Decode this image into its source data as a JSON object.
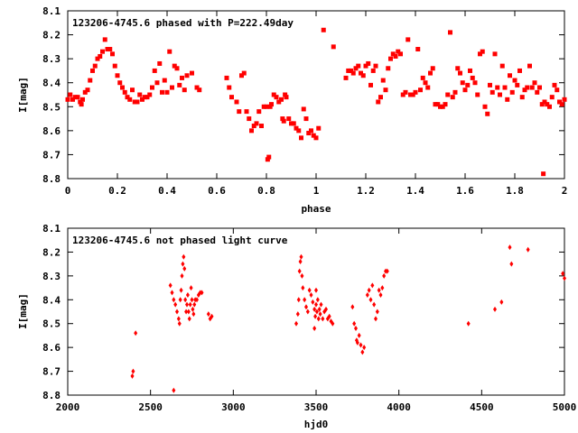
{
  "chart_data": [
    {
      "type": "scatter",
      "title": "123206-4745.6 phased with P=222.49day",
      "xlabel": "phase",
      "ylabel": "I[mag]",
      "xlim": [
        0,
        2
      ],
      "ylim": [
        8.1,
        8.8
      ],
      "y_inverted": true,
      "xticks": [
        "0",
        "0.2",
        "0.4",
        "0.6",
        "0.8",
        "1",
        "1.2",
        "1.4",
        "1.6",
        "1.8",
        "2"
      ],
      "yticks": [
        "8.1",
        "8.2",
        "8.3",
        "8.4",
        "8.5",
        "8.6",
        "8.7",
        "8.8"
      ],
      "marker_color": "#ff0000",
      "grid": false,
      "points": [
        [
          0.0,
          8.47
        ],
        [
          0.01,
          8.45
        ],
        [
          0.02,
          8.47
        ],
        [
          0.03,
          8.46
        ],
        [
          0.04,
          8.46
        ],
        [
          0.05,
          8.48
        ],
        [
          0.055,
          8.49
        ],
        [
          0.06,
          8.47
        ],
        [
          0.07,
          8.44
        ],
        [
          0.08,
          8.43
        ],
        [
          0.09,
          8.39
        ],
        [
          0.1,
          8.35
        ],
        [
          0.11,
          8.33
        ],
        [
          0.12,
          8.3
        ],
        [
          0.13,
          8.29
        ],
        [
          0.14,
          8.27
        ],
        [
          0.15,
          8.22
        ],
        [
          0.16,
          8.26
        ],
        [
          0.17,
          8.26
        ],
        [
          0.18,
          8.28
        ],
        [
          0.19,
          8.33
        ],
        [
          0.2,
          8.37
        ],
        [
          0.21,
          8.4
        ],
        [
          0.22,
          8.42
        ],
        [
          0.23,
          8.44
        ],
        [
          0.24,
          8.46
        ],
        [
          0.25,
          8.47
        ],
        [
          0.26,
          8.43
        ],
        [
          0.27,
          8.48
        ],
        [
          0.28,
          8.48
        ],
        [
          0.29,
          8.45
        ],
        [
          0.3,
          8.47
        ],
        [
          0.31,
          8.46
        ],
        [
          0.32,
          8.46
        ],
        [
          0.33,
          8.45
        ],
        [
          0.34,
          8.42
        ],
        [
          0.35,
          8.35
        ],
        [
          0.36,
          8.4
        ],
        [
          0.37,
          8.32
        ],
        [
          0.38,
          8.44
        ],
        [
          0.39,
          8.39
        ],
        [
          0.4,
          8.44
        ],
        [
          0.41,
          8.27
        ],
        [
          0.42,
          8.42
        ],
        [
          0.43,
          8.33
        ],
        [
          0.44,
          8.34
        ],
        [
          0.45,
          8.41
        ],
        [
          0.46,
          8.38
        ],
        [
          0.47,
          8.43
        ],
        [
          0.48,
          8.37
        ],
        [
          0.5,
          8.36
        ],
        [
          0.52,
          8.42
        ],
        [
          0.53,
          8.43
        ],
        [
          0.64,
          8.38
        ],
        [
          0.65,
          8.42
        ],
        [
          0.66,
          8.46
        ],
        [
          0.68,
          8.48
        ],
        [
          0.69,
          8.52
        ],
        [
          0.7,
          8.37
        ],
        [
          0.71,
          8.36
        ],
        [
          0.72,
          8.52
        ],
        [
          0.73,
          8.55
        ],
        [
          0.74,
          8.6
        ],
        [
          0.75,
          8.58
        ],
        [
          0.76,
          8.57
        ],
        [
          0.77,
          8.52
        ],
        [
          0.78,
          8.58
        ],
        [
          0.79,
          8.5
        ],
        [
          0.8,
          8.5
        ],
        [
          0.805,
          8.72
        ],
        [
          0.81,
          8.71
        ],
        [
          0.815,
          8.5
        ],
        [
          0.82,
          8.49
        ],
        [
          0.83,
          8.45
        ],
        [
          0.84,
          8.46
        ],
        [
          0.85,
          8.48
        ],
        [
          0.86,
          8.47
        ],
        [
          0.865,
          8.55
        ],
        [
          0.87,
          8.56
        ],
        [
          0.875,
          8.45
        ],
        [
          0.88,
          8.46
        ],
        [
          0.89,
          8.55
        ],
        [
          0.9,
          8.57
        ],
        [
          0.91,
          8.57
        ],
        [
          0.92,
          8.59
        ],
        [
          0.93,
          8.6
        ],
        [
          0.94,
          8.63
        ],
        [
          0.95,
          8.51
        ],
        [
          0.96,
          8.55
        ],
        [
          0.97,
          8.61
        ],
        [
          0.98,
          8.6
        ],
        [
          0.99,
          8.62
        ],
        [
          1.0,
          8.63
        ],
        [
          1.01,
          8.59
        ],
        [
          1.03,
          8.18
        ],
        [
          1.07,
          8.25
        ],
        [
          1.12,
          8.38
        ],
        [
          1.13,
          8.35
        ],
        [
          1.14,
          8.35
        ],
        [
          1.15,
          8.36
        ],
        [
          1.16,
          8.34
        ],
        [
          1.17,
          8.33
        ],
        [
          1.18,
          8.36
        ],
        [
          1.19,
          8.37
        ],
        [
          1.2,
          8.33
        ],
        [
          1.21,
          8.32
        ],
        [
          1.22,
          8.41
        ],
        [
          1.23,
          8.35
        ],
        [
          1.24,
          8.33
        ],
        [
          1.25,
          8.48
        ],
        [
          1.26,
          8.46
        ],
        [
          1.27,
          8.39
        ],
        [
          1.28,
          8.43
        ],
        [
          1.29,
          8.34
        ],
        [
          1.3,
          8.3
        ],
        [
          1.31,
          8.28
        ],
        [
          1.32,
          8.29
        ],
        [
          1.33,
          8.27
        ],
        [
          1.34,
          8.28
        ],
        [
          1.35,
          8.45
        ],
        [
          1.36,
          8.44
        ],
        [
          1.37,
          8.22
        ],
        [
          1.38,
          8.45
        ],
        [
          1.39,
          8.45
        ],
        [
          1.4,
          8.44
        ],
        [
          1.41,
          8.26
        ],
        [
          1.42,
          8.43
        ],
        [
          1.43,
          8.38
        ],
        [
          1.44,
          8.4
        ],
        [
          1.45,
          8.42
        ],
        [
          1.46,
          8.36
        ],
        [
          1.47,
          8.34
        ],
        [
          1.48,
          8.49
        ],
        [
          1.49,
          8.49
        ],
        [
          1.5,
          8.5
        ],
        [
          1.51,
          8.5
        ],
        [
          1.52,
          8.49
        ],
        [
          1.53,
          8.45
        ],
        [
          1.54,
          8.19
        ],
        [
          1.55,
          8.46
        ],
        [
          1.56,
          8.44
        ],
        [
          1.57,
          8.34
        ],
        [
          1.58,
          8.36
        ],
        [
          1.59,
          8.4
        ],
        [
          1.6,
          8.43
        ],
        [
          1.61,
          8.41
        ],
        [
          1.62,
          8.35
        ],
        [
          1.63,
          8.38
        ],
        [
          1.64,
          8.4
        ],
        [
          1.65,
          8.45
        ],
        [
          1.66,
          8.28
        ],
        [
          1.67,
          8.27
        ],
        [
          1.68,
          8.5
        ],
        [
          1.69,
          8.53
        ],
        [
          1.7,
          8.41
        ],
        [
          1.71,
          8.44
        ],
        [
          1.72,
          8.28
        ],
        [
          1.73,
          8.42
        ],
        [
          1.74,
          8.45
        ],
        [
          1.75,
          8.33
        ],
        [
          1.76,
          8.42
        ],
        [
          1.77,
          8.47
        ],
        [
          1.78,
          8.37
        ],
        [
          1.79,
          8.44
        ],
        [
          1.8,
          8.39
        ],
        [
          1.81,
          8.41
        ],
        [
          1.82,
          8.35
        ],
        [
          1.83,
          8.46
        ],
        [
          1.84,
          8.43
        ],
        [
          1.85,
          8.42
        ],
        [
          1.86,
          8.33
        ],
        [
          1.87,
          8.42
        ],
        [
          1.88,
          8.4
        ],
        [
          1.89,
          8.44
        ],
        [
          1.9,
          8.42
        ],
        [
          1.91,
          8.49
        ],
        [
          1.915,
          8.78
        ],
        [
          1.92,
          8.48
        ],
        [
          1.93,
          8.49
        ],
        [
          1.94,
          8.5
        ],
        [
          1.95,
          8.46
        ],
        [
          1.96,
          8.41
        ],
        [
          1.97,
          8.43
        ],
        [
          1.98,
          8.48
        ],
        [
          1.99,
          8.49
        ],
        [
          2.0,
          8.47
        ]
      ]
    },
    {
      "type": "scatter",
      "title": "123206-4745.6 not phased light curve",
      "xlabel": "hjd0",
      "ylabel": "I[mag]",
      "xlim": [
        2000,
        5000
      ],
      "ylim": [
        8.1,
        8.8
      ],
      "y_inverted": true,
      "xticks": [
        "2000",
        "2500",
        "3000",
        "3500",
        "4000",
        "4500",
        "5000"
      ],
      "yticks": [
        "8.1",
        "8.2",
        "8.3",
        "8.4",
        "8.5",
        "8.6",
        "8.7",
        "8.8"
      ],
      "marker_color": "#ff0000",
      "grid": false,
      "points": [
        [
          2390,
          8.72
        ],
        [
          2395,
          8.7
        ],
        [
          2410,
          8.54
        ],
        [
          2640,
          8.78
        ],
        [
          2620,
          8.34
        ],
        [
          2630,
          8.37
        ],
        [
          2640,
          8.4
        ],
        [
          2650,
          8.42
        ],
        [
          2660,
          8.45
        ],
        [
          2670,
          8.48
        ],
        [
          2675,
          8.5
        ],
        [
          2680,
          8.4
        ],
        [
          2685,
          8.36
        ],
        [
          2690,
          8.3
        ],
        [
          2695,
          8.25
        ],
        [
          2700,
          8.22
        ],
        [
          2705,
          8.27
        ],
        [
          2710,
          8.4
        ],
        [
          2715,
          8.45
        ],
        [
          2720,
          8.42
        ],
        [
          2725,
          8.38
        ],
        [
          2730,
          8.45
        ],
        [
          2735,
          8.48
        ],
        [
          2740,
          8.42
        ],
        [
          2745,
          8.35
        ],
        [
          2750,
          8.4
        ],
        [
          2755,
          8.44
        ],
        [
          2760,
          8.46
        ],
        [
          2765,
          8.42
        ],
        [
          2770,
          8.4
        ],
        [
          2780,
          8.4
        ],
        [
          2790,
          8.38
        ],
        [
          2800,
          8.37
        ],
        [
          2810,
          8.37
        ],
        [
          2850,
          8.46
        ],
        [
          2860,
          8.48
        ],
        [
          2870,
          8.47
        ],
        [
          3380,
          8.5
        ],
        [
          3390,
          8.46
        ],
        [
          3395,
          8.4
        ],
        [
          3400,
          8.28
        ],
        [
          3405,
          8.24
        ],
        [
          3410,
          8.22
        ],
        [
          3415,
          8.3
        ],
        [
          3420,
          8.35
        ],
        [
          3430,
          8.4
        ],
        [
          3440,
          8.43
        ],
        [
          3450,
          8.45
        ],
        [
          3460,
          8.36
        ],
        [
          3470,
          8.38
        ],
        [
          3480,
          8.41
        ],
        [
          3490,
          8.44
        ],
        [
          3495,
          8.47
        ],
        [
          3500,
          8.42
        ],
        [
          3505,
          8.45
        ],
        [
          3510,
          8.4
        ],
        [
          3515,
          8.48
        ],
        [
          3520,
          8.44
        ],
        [
          3525,
          8.46
        ],
        [
          3530,
          8.42
        ],
        [
          3540,
          8.48
        ],
        [
          3550,
          8.45
        ],
        [
          3560,
          8.44
        ],
        [
          3570,
          8.48
        ],
        [
          3580,
          8.47
        ],
        [
          3590,
          8.49
        ],
        [
          3600,
          8.5
        ],
        [
          3490,
          8.52
        ],
        [
          3500,
          8.36
        ],
        [
          3720,
          8.43
        ],
        [
          3730,
          8.5
        ],
        [
          3740,
          8.52
        ],
        [
          3745,
          8.57
        ],
        [
          3750,
          8.58
        ],
        [
          3760,
          8.55
        ],
        [
          3770,
          8.59
        ],
        [
          3780,
          8.62
        ],
        [
          3790,
          8.6
        ],
        [
          3810,
          8.38
        ],
        [
          3820,
          8.36
        ],
        [
          3830,
          8.4
        ],
        [
          3840,
          8.34
        ],
        [
          3850,
          8.42
        ],
        [
          3860,
          8.48
        ],
        [
          3870,
          8.45
        ],
        [
          3880,
          8.36
        ],
        [
          3890,
          8.38
        ],
        [
          3900,
          8.35
        ],
        [
          3910,
          8.3
        ],
        [
          3920,
          8.28
        ],
        [
          3930,
          8.28
        ],
        [
          4420,
          8.5
        ],
        [
          4580,
          8.44
        ],
        [
          4620,
          8.41
        ],
        [
          4670,
          8.18
        ],
        [
          4680,
          8.25
        ],
        [
          4780,
          8.19
        ],
        [
          4990,
          8.29
        ],
        [
          5000,
          8.31
        ]
      ]
    }
  ]
}
